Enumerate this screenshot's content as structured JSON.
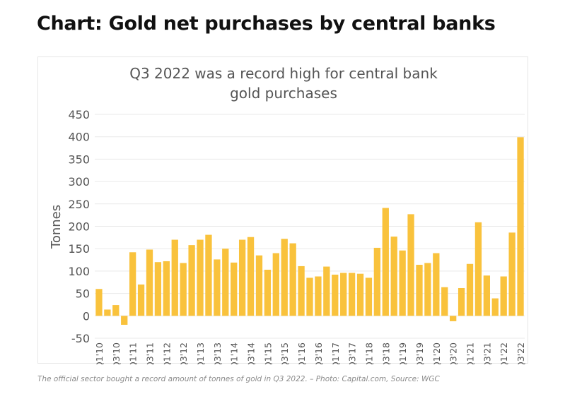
{
  "page": {
    "title": "Chart: Gold net purchases by central banks",
    "caption": "The official sector bought a record amount of tonnes of gold in Q3 2022. – Photo: Capital.com, Source: WGC"
  },
  "colors": {
    "bar": "#f9c23c",
    "grid": "#e9e9e9",
    "text": "#555555"
  },
  "chart_data": {
    "type": "bar",
    "title_lines": [
      "Q3 2022 was a record high for central bank",
      "gold purchases"
    ],
    "ylabel": "Tonnes",
    "xlabel": "",
    "ylim": [
      -50,
      450
    ],
    "yticks": [
      -50,
      0,
      50,
      100,
      150,
      200,
      250,
      300,
      350,
      400,
      450
    ],
    "grid": true,
    "categories": [
      "Q1'10",
      "Q2'10",
      "Q3'10",
      "Q4'10",
      "Q1'11",
      "Q2'11",
      "Q3'11",
      "Q4'11",
      "Q1'12",
      "Q2'12",
      "Q3'12",
      "Q4'12",
      "Q1'13",
      "Q2'13",
      "Q3'13",
      "Q4'13",
      "Q1'14",
      "Q2'14",
      "Q3'14",
      "Q4'14",
      "Q1'15",
      "Q2'15",
      "Q3'15",
      "Q4'15",
      "Q1'16",
      "Q2'16",
      "Q3'16",
      "Q4'16",
      "Q1'17",
      "Q2'17",
      "Q3'17",
      "Q4'17",
      "Q1'18",
      "Q2'18",
      "Q3'18",
      "Q4'18",
      "Q1'19",
      "Q2'19",
      "Q3'19",
      "Q4'19",
      "Q1'20",
      "Q2'20",
      "Q3'20",
      "Q4'20",
      "Q1'21",
      "Q2'21",
      "Q3'21",
      "Q4'21",
      "Q1'22",
      "Q2'22",
      "Q3'22"
    ],
    "tick_labels": [
      "Q1'10",
      "",
      "Q3'10",
      "",
      "Q1'11",
      "",
      "Q3'11",
      "",
      "Q1'12",
      "",
      "Q3'12",
      "",
      "Q1'13",
      "",
      "Q3'13",
      "",
      "Q1'14",
      "",
      "Q3'14",
      "",
      "Q1'15",
      "",
      "Q3'15",
      "",
      "Q1'16",
      "",
      "Q3'16",
      "",
      "Q1'17",
      "",
      "Q3'17",
      "",
      "Q1'18",
      "",
      "Q3'18",
      "",
      "Q1'19",
      "",
      "Q3'19",
      "",
      "Q1'20",
      "",
      "Q3'20",
      "",
      "Q1'21",
      "",
      "Q3'21",
      "",
      "Q1'22",
      "",
      "Q3'22"
    ],
    "values": [
      60,
      14,
      24,
      -20,
      142,
      70,
      148,
      120,
      122,
      170,
      118,
      158,
      170,
      181,
      126,
      150,
      119,
      170,
      176,
      135,
      103,
      140,
      172,
      162,
      111,
      85,
      88,
      110,
      92,
      96,
      96,
      94,
      85,
      152,
      241,
      177,
      146,
      227,
      114,
      118,
      140,
      64,
      -12,
      62,
      116,
      209,
      90,
      39,
      88,
      186,
      399
    ]
  }
}
